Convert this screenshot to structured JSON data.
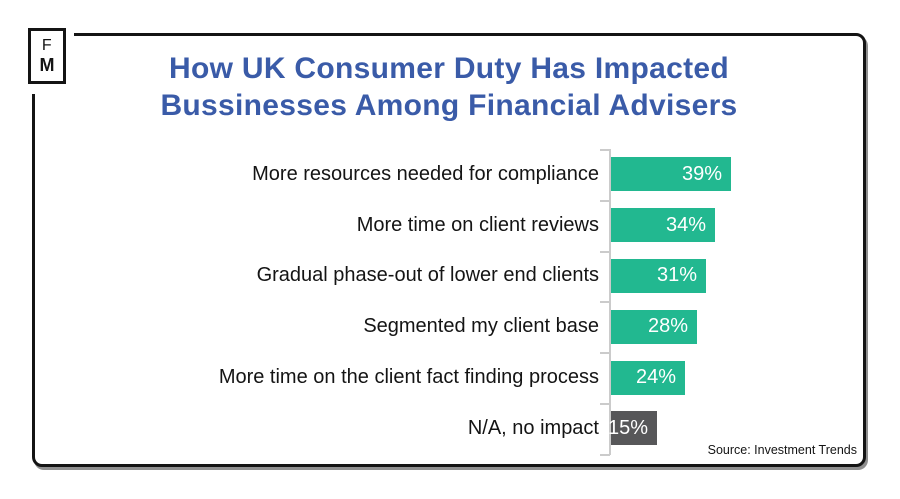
{
  "logo": {
    "letter_top": "F",
    "letter_bottom": "M"
  },
  "title": {
    "line1": "How UK Consumer Duty Has Impacted",
    "line2": "Bussinesses Among Financial Advisers",
    "color": "#3A5BA8"
  },
  "source": "Source: Investment Trends",
  "colors": {
    "bar_teal": "#22B890",
    "bar_gray": "#575759",
    "title_blue": "#3A5BA8",
    "frame_border": "#141414",
    "axis_gray": "#CBCBCB",
    "value_label_text": "#FFFFFF",
    "category_label_text": "#141414"
  },
  "chart_data": {
    "type": "bar",
    "orientation": "horizontal",
    "title": "How UK Consumer Duty Has Impacted Bussinesses Among Financial Advisers",
    "xlabel": "",
    "ylabel": "",
    "grid": false,
    "legend": false,
    "unit": "%",
    "categories": [
      "More resources needed for compliance",
      "More time on client reviews",
      "Gradual phase-out of lower end clients",
      "Segmented my client base",
      "More time on the client fact finding process",
      "N/A, no impact"
    ],
    "values": [
      39,
      34,
      31,
      28,
      24,
      15
    ],
    "value_labels": [
      "39%",
      "34%",
      "31%",
      "28%",
      "24%",
      "15%"
    ],
    "bar_colors": [
      "#22B890",
      "#22B890",
      "#22B890",
      "#22B890",
      "#22B890",
      "#575759"
    ]
  }
}
